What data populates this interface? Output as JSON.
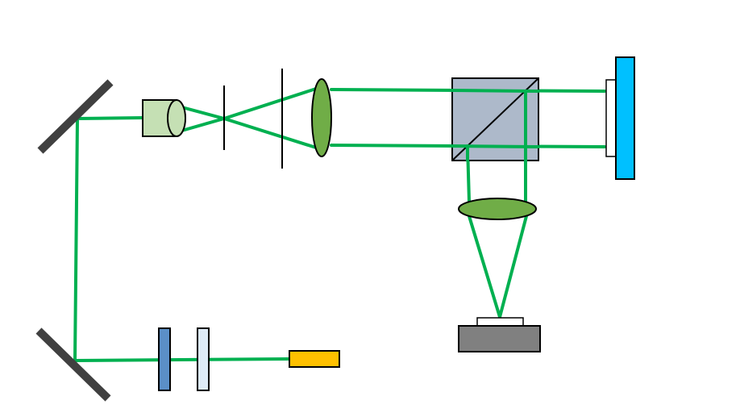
{
  "diagram": {
    "type": "optical-setup-schematic",
    "labels": [],
    "colors": {
      "background": "#ffffff",
      "beam": "#00b050",
      "mirror": "#404040",
      "objective": "#c5e0b4",
      "pinhole": "#000000",
      "lens": "#70ad47",
      "beamsplitter": "#adb9ca",
      "waveplate_dark": "#5b8fc7",
      "waveplate_light": "#deebf7",
      "laser": "#ffc000",
      "slm": "#00c0ff",
      "camera_body": "#808080",
      "camera_window": "#ffffff",
      "outline": "#000000"
    },
    "components": [
      {
        "name": "laser-source",
        "icon": "rectangle"
      },
      {
        "name": "waveplate-light",
        "icon": "thin-plate"
      },
      {
        "name": "waveplate-dark",
        "icon": "thin-plate"
      },
      {
        "name": "lower-mirror",
        "icon": "slanted-bar"
      },
      {
        "name": "upper-mirror",
        "icon": "slanted-bar"
      },
      {
        "name": "microscope-objective",
        "icon": "cylinder"
      },
      {
        "name": "pinhole",
        "icon": "vertical-line"
      },
      {
        "name": "iris",
        "icon": "vertical-line"
      },
      {
        "name": "collimating-lens",
        "icon": "ellipse"
      },
      {
        "name": "beam-splitter-cube",
        "icon": "cube-with-diagonal"
      },
      {
        "name": "spatial-light-modulator",
        "icon": "tall-rectangle"
      },
      {
        "name": "imaging-lens",
        "icon": "ellipse"
      },
      {
        "name": "camera",
        "icon": "box"
      }
    ]
  }
}
